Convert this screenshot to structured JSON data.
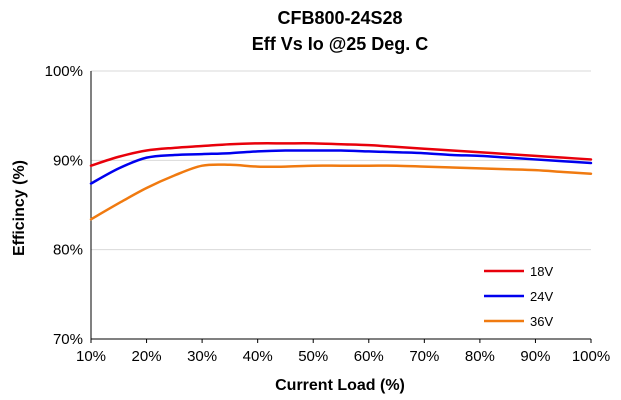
{
  "chart_data": {
    "type": "line",
    "title": "CFB800-24S28",
    "subtitle": "Eff Vs Io @25 Deg. C",
    "xlabel": "Current Load (%)",
    "ylabel": "Efficincy (%)",
    "x": [
      10,
      15,
      20,
      25,
      30,
      35,
      40,
      45,
      50,
      55,
      60,
      65,
      70,
      75,
      80,
      85,
      90,
      95,
      100
    ],
    "x_tick_labels": [
      "10%",
      "20%",
      "30%",
      "40%",
      "50%",
      "60%",
      "70%",
      "80%",
      "90%",
      "100%"
    ],
    "y_tick_labels": [
      "70%",
      "80%",
      "90%",
      "100%"
    ],
    "xlim": [
      10,
      100
    ],
    "ylim": [
      70,
      100
    ],
    "grid": "horizontal",
    "legend_position": "bottom-right",
    "series": [
      {
        "name": "18V",
        "color": "#e8000b",
        "values": [
          89.4,
          90.4,
          91.1,
          91.4,
          91.6,
          91.8,
          91.9,
          91.9,
          91.9,
          91.8,
          91.7,
          91.5,
          91.3,
          91.1,
          90.9,
          90.7,
          90.5,
          90.3,
          90.1
        ]
      },
      {
        "name": "24V",
        "color": "#0000ee",
        "values": [
          87.4,
          89.1,
          90.3,
          90.6,
          90.7,
          90.8,
          91.0,
          91.1,
          91.1,
          91.1,
          91.0,
          90.9,
          90.8,
          90.6,
          90.5,
          90.3,
          90.1,
          89.9,
          89.7
        ]
      },
      {
        "name": "36V",
        "color": "#f07a10",
        "values": [
          83.4,
          85.2,
          86.9,
          88.3,
          89.4,
          89.5,
          89.3,
          89.3,
          89.4,
          89.4,
          89.4,
          89.4,
          89.3,
          89.2,
          89.1,
          89.0,
          88.9,
          88.7,
          88.5
        ]
      }
    ]
  }
}
